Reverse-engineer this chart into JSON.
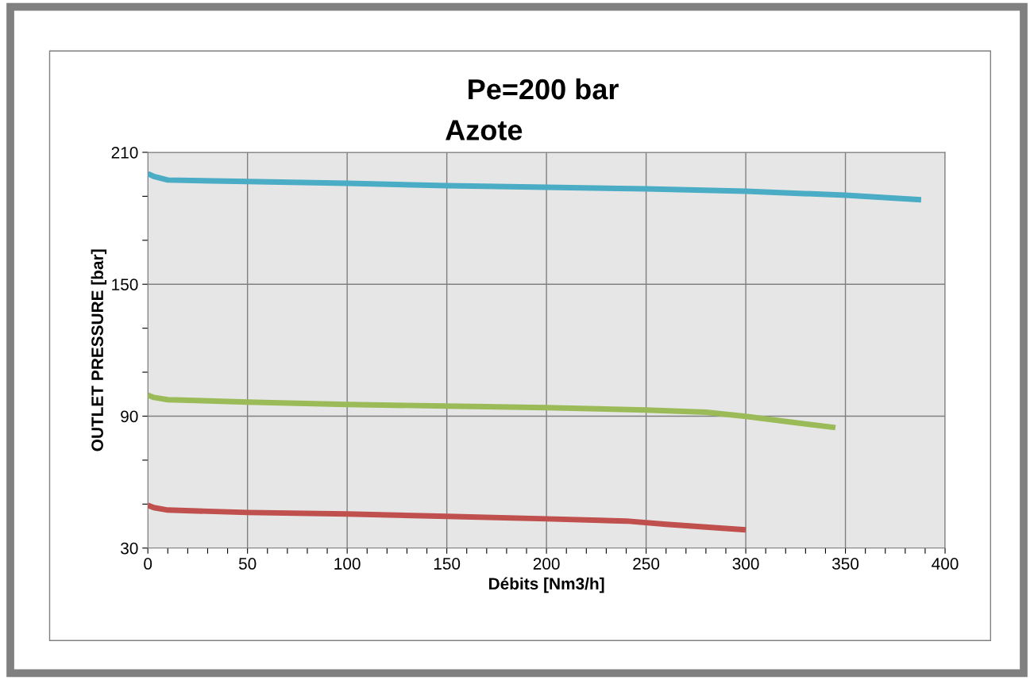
{
  "chart_data": {
    "type": "line",
    "title": "Pe=200 bar",
    "subtitle": "Azote",
    "xlabel": "Débits [Nm3/h]",
    "ylabel": "OUTLET PRESSURE [bar]",
    "xlim": [
      0,
      400
    ],
    "xticks": [
      0,
      {
        "value": 10,
        "label": null
      },
      {
        "value": 20,
        "label": null
      },
      {
        "value": 30,
        "label": null
      },
      {
        "value": 40,
        "label": null
      },
      50,
      {
        "value": 60,
        "label": null
      },
      {
        "value": 70,
        "label": null
      },
      {
        "value": 80,
        "label": null
      },
      {
        "value": 90,
        "label": null
      },
      100,
      {
        "value": 110,
        "label": null
      },
      {
        "value": 120,
        "label": null
      },
      {
        "value": 130,
        "label": null
      },
      {
        "value": 140,
        "label": null
      },
      150,
      {
        "value": 160,
        "label": null
      },
      {
        "value": 170,
        "label": null
      },
      {
        "value": 180,
        "label": null
      },
      {
        "value": 190,
        "label": null
      },
      200,
      {
        "value": 210,
        "label": null
      },
      {
        "value": 220,
        "label": null
      },
      {
        "value": 230,
        "label": null
      },
      {
        "value": 240,
        "label": null
      },
      250,
      {
        "value": 260,
        "label": null
      },
      {
        "value": 270,
        "label": null
      },
      {
        "value": 280,
        "label": null
      },
      {
        "value": 290,
        "label": null
      },
      300,
      {
        "value": 310,
        "label": null
      },
      {
        "value": 320,
        "label": null
      },
      {
        "value": 330,
        "label": null
      },
      {
        "value": 340,
        "label": null
      },
      350,
      {
        "value": 360,
        "label": null
      },
      {
        "value": 370,
        "label": null
      },
      {
        "value": 380,
        "label": null
      },
      {
        "value": 390,
        "label": null
      },
      400
    ],
    "ylim": [
      30,
      210
    ],
    "yticks": [
      30,
      {
        "value": 50,
        "label": null
      },
      {
        "value": 70,
        "label": null
      },
      90,
      {
        "value": 110,
        "label": null
      },
      {
        "value": 130,
        "label": null
      },
      150,
      {
        "value": 170,
        "label": null
      },
      {
        "value": 190,
        "label": null
      },
      210
    ],
    "grid": true,
    "legend": false,
    "marker": "none",
    "line_style": "solid",
    "series": [
      {
        "color": "#4bacc6",
        "x": [
          0,
          3,
          10,
          50,
          100,
          150,
          200,
          250,
          300,
          350,
          388
        ],
        "values": [
          200.3,
          199,
          197.4,
          196.7,
          195.9,
          194.8,
          194.1,
          193.4,
          192.3,
          190.5,
          188.4
        ]
      },
      {
        "color": "#9bbb59",
        "x": [
          0,
          3,
          10,
          50,
          100,
          150,
          200,
          250,
          280,
          300,
          345
        ],
        "values": [
          99.6,
          98.5,
          97.5,
          96.4,
          95.3,
          94.6,
          93.9,
          92.8,
          91.8,
          89.9,
          84.8
        ]
      },
      {
        "color": "#c0504d",
        "x": [
          0,
          3,
          10,
          50,
          100,
          150,
          200,
          240,
          260,
          300
        ],
        "values": [
          49.5,
          48.4,
          47.3,
          46.2,
          45.5,
          44.4,
          43.3,
          42.3,
          40.8,
          38.3
        ]
      }
    ]
  }
}
